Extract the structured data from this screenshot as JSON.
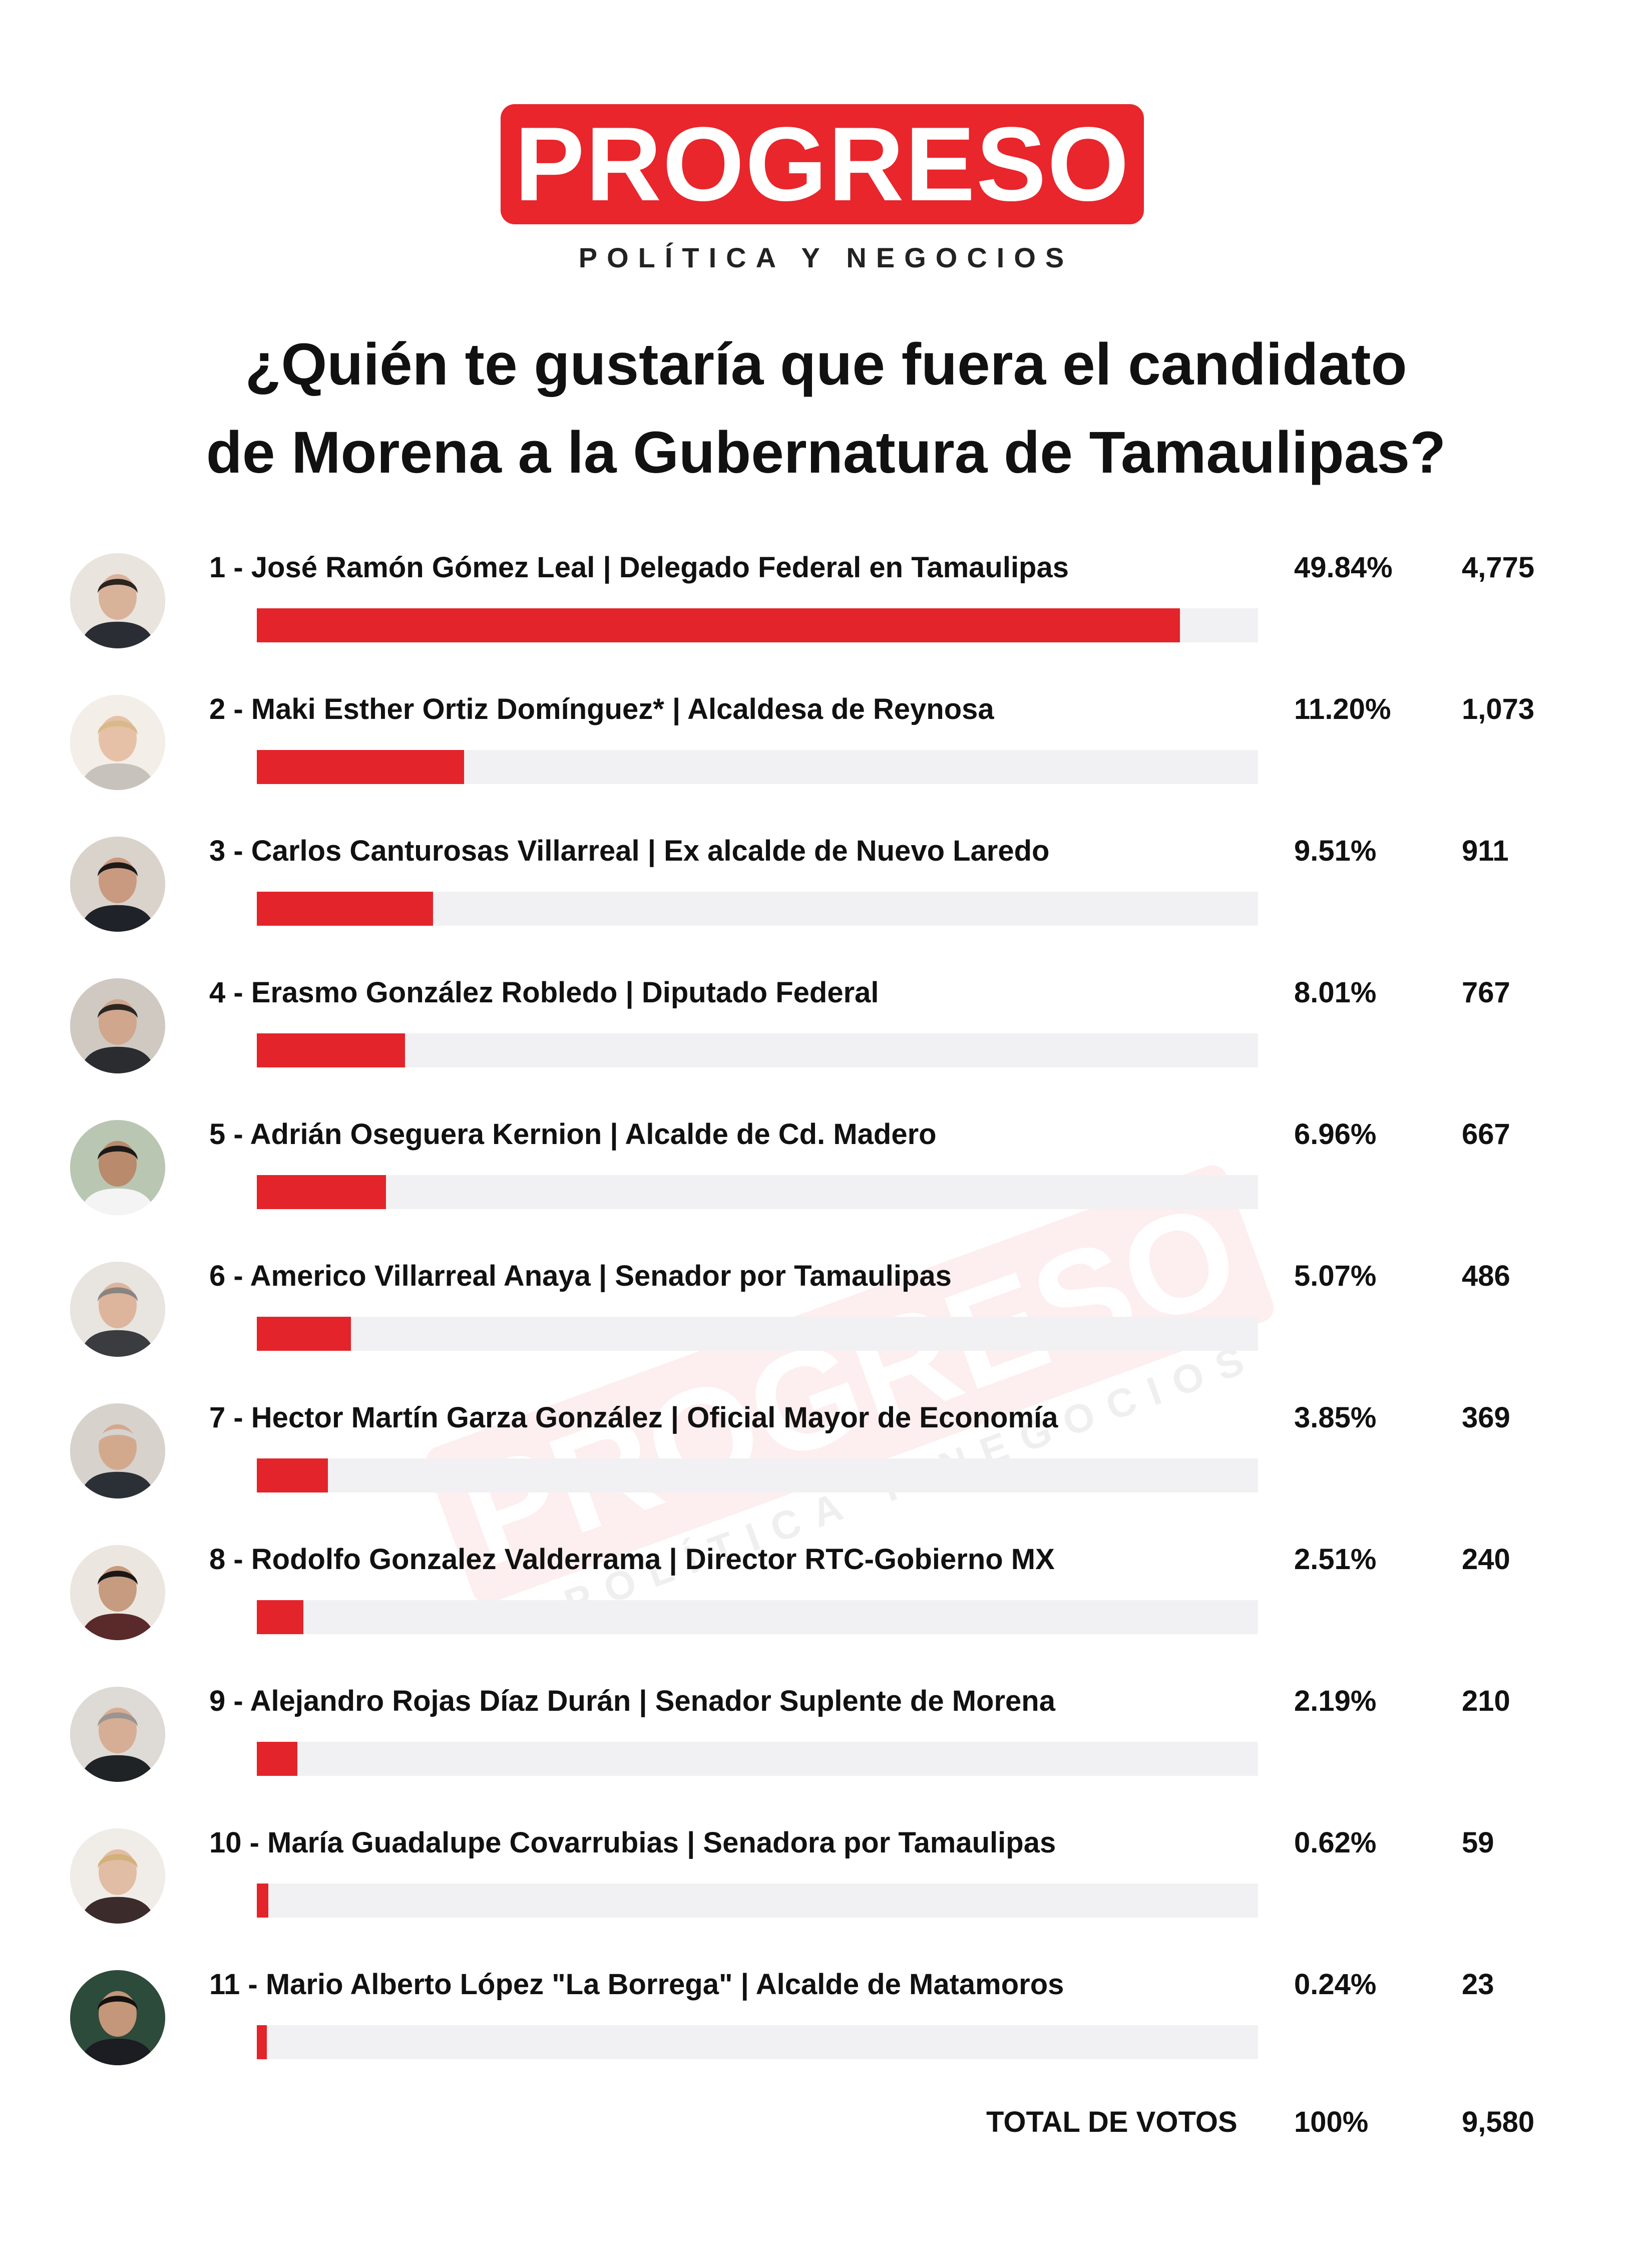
{
  "brand": {
    "logo_text": "PROGRESO",
    "tagline": "POLÍTICA Y NEGOCIOS",
    "accent_color": "#e8262c"
  },
  "title": {
    "line1": "¿Quién te gustaría que fuera el candidato",
    "line2": "de Morena a la Gubernatura de Tamaulipas?"
  },
  "chart_data": {
    "type": "bar",
    "orientation": "horizontal",
    "bar_color": "#e3242b",
    "track_color": "#f1f1f3",
    "xlim": [
      0,
      100
    ],
    "rows": [
      {
        "label": "1 - José Ramón Gómez Leal | Delegado Federal en Tamaulipas",
        "percent_text": "49.84%",
        "votes_text": "4,775",
        "percent": 49.84,
        "votes": 4775
      },
      {
        "label": "2 - Maki Esther Ortiz Domínguez* | Alcaldesa de Reynosa",
        "percent_text": "11.20%",
        "votes_text": "1,073",
        "percent": 11.2,
        "votes": 1073
      },
      {
        "label": "3 - Carlos Canturosas Villarreal | Ex alcalde de Nuevo Laredo",
        "percent_text": "9.51%",
        "votes_text": "911",
        "percent": 9.51,
        "votes": 911
      },
      {
        "label": "4 - Erasmo González Robledo | Diputado Federal",
        "percent_text": "8.01%",
        "votes_text": "767",
        "percent": 8.01,
        "votes": 767
      },
      {
        "label": "5 - Adrián Oseguera Kernion | Alcalde de Cd. Madero",
        "percent_text": "6.96%",
        "votes_text": "667",
        "percent": 6.96,
        "votes": 667
      },
      {
        "label": "6 - Americo Villarreal Anaya | Senador por Tamaulipas",
        "percent_text": "5.07%",
        "votes_text": "486",
        "percent": 5.07,
        "votes": 486
      },
      {
        "label": "7 - Hector Martín Garza González | Oficial Mayor de Economía",
        "percent_text": "3.85%",
        "votes_text": "369",
        "percent": 3.85,
        "votes": 369
      },
      {
        "label": "8 - Rodolfo Gonzalez Valderrama | Director RTC-Gobierno MX",
        "percent_text": "2.51%",
        "votes_text": "240",
        "percent": 2.51,
        "votes": 240
      },
      {
        "label": "9 - Alejandro Rojas Díaz Durán | Senador Suplente de Morena",
        "percent_text": "2.19%",
        "votes_text": "210",
        "percent": 2.19,
        "votes": 210
      },
      {
        "label": "10 - María Guadalupe Covarrubias | Senadora por Tamaulipas",
        "percent_text": "0.62%",
        "votes_text": "59",
        "percent": 0.62,
        "votes": 59
      },
      {
        "label": "11 - Mario Alberto López \"La Borrega\" | Alcalde de Matamoros",
        "percent_text": "0.24%",
        "votes_text": "23",
        "percent": 0.24,
        "votes": 23
      }
    ],
    "total": {
      "label": "TOTAL DE VOTOS",
      "percent_text": "100%",
      "votes_text": "9,580"
    }
  }
}
